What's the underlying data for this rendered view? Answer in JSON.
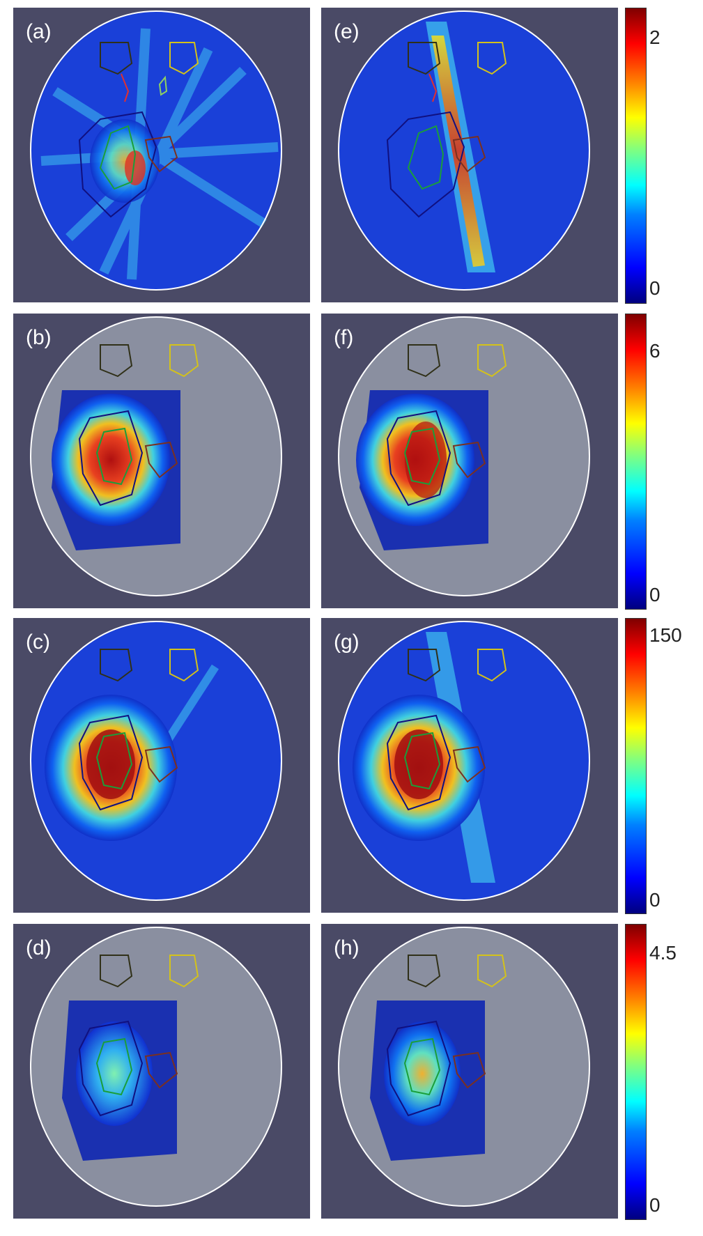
{
  "panels": [
    {
      "label": "(a)"
    },
    {
      "label": "(e)"
    },
    {
      "label": "(b)"
    },
    {
      "label": "(f)"
    },
    {
      "label": "(c)"
    },
    {
      "label": "(g)"
    },
    {
      "label": "(d)"
    },
    {
      "label": "(h)"
    }
  ],
  "colorbars": [
    {
      "max": "2",
      "min": "0"
    },
    {
      "max": "6",
      "min": "0"
    },
    {
      "max": "150",
      "min": "0"
    },
    {
      "max": "4.5",
      "min": "0"
    }
  ],
  "colors": {
    "background": "#4a4a66",
    "contour_white": "#ffffff",
    "tumor_green": "#1a9e3a",
    "ptv_blue": "#1a1a9e",
    "organ_red": "#e03030",
    "organ_yellow": "#d4c21a",
    "organ_brown": "#7a3020",
    "organ_dark": "#303018",
    "organ_lightgreen": "#90d060",
    "organ_magenta": "#c030c0"
  }
}
